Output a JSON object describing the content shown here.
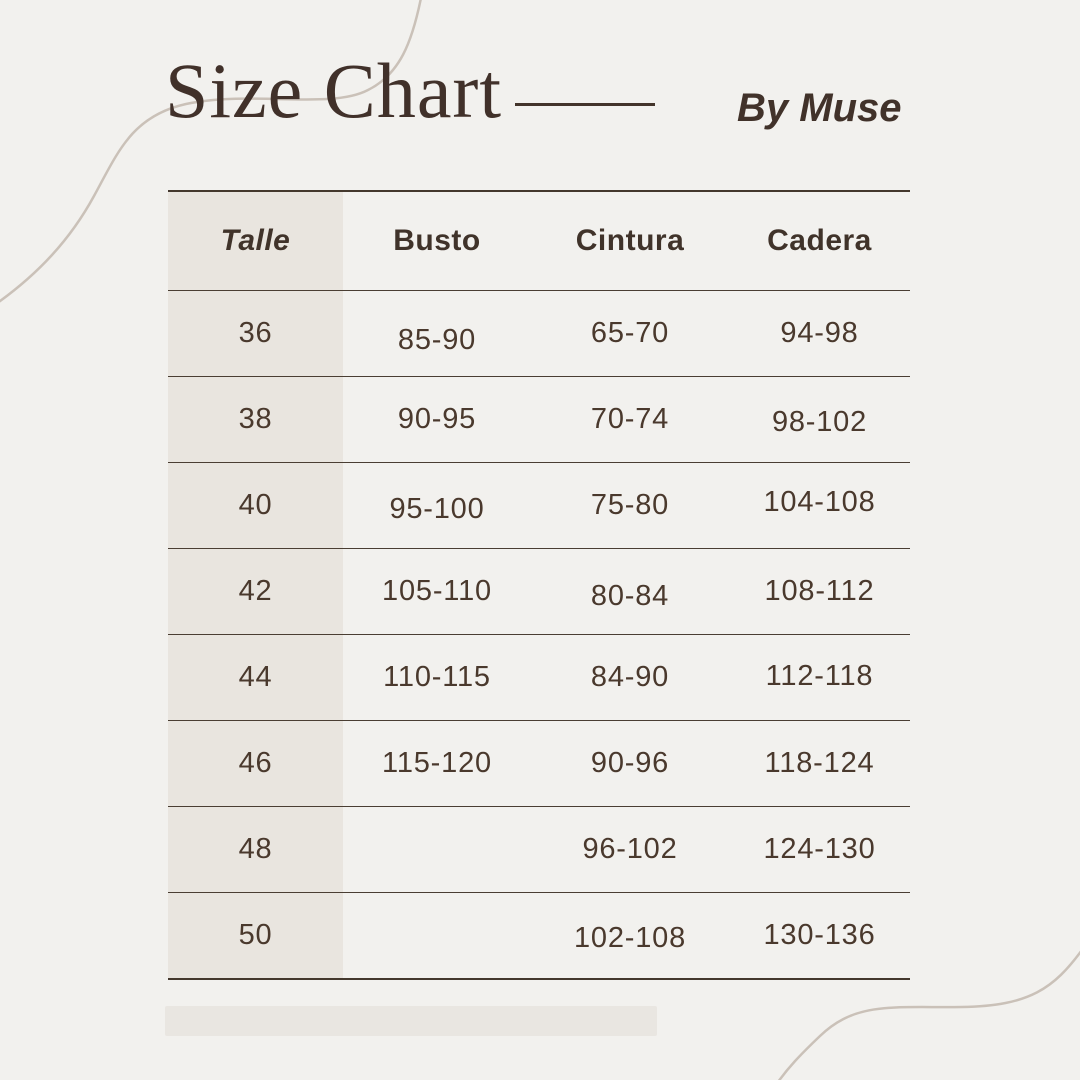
{
  "header": {
    "title": "Size Chart",
    "brand": "By Muse"
  },
  "chart_data": {
    "type": "table",
    "title": "Size Chart",
    "columns": [
      "Talle",
      "Busto",
      "Cintura",
      "Cadera"
    ],
    "rows": [
      [
        "36",
        "85-90",
        "65-70",
        "94-98"
      ],
      [
        "38",
        "90-95",
        "70-74",
        "98-102"
      ],
      [
        "40",
        "95-100",
        "75-80",
        "104-108"
      ],
      [
        "42",
        "105-110",
        "80-84",
        "108-112"
      ],
      [
        "44",
        "110-115",
        "84-90",
        "112-118"
      ],
      [
        "46",
        "115-120",
        "90-96",
        "118-124"
      ],
      [
        "48",
        "",
        "96-102",
        "124-130"
      ],
      [
        "50",
        "",
        "102-108",
        "130-136"
      ]
    ],
    "layout_hints": {
      "highlighted_column": "Talle",
      "units": "cm"
    }
  },
  "colors": {
    "background": "#f2f1ee",
    "text_dark_brown": "#45362b",
    "talle_column_fill": "#e9e5df",
    "table_line": "#44382d",
    "decorative_curve": "#cac1b8",
    "footer_bar": "#e9e6e1"
  }
}
